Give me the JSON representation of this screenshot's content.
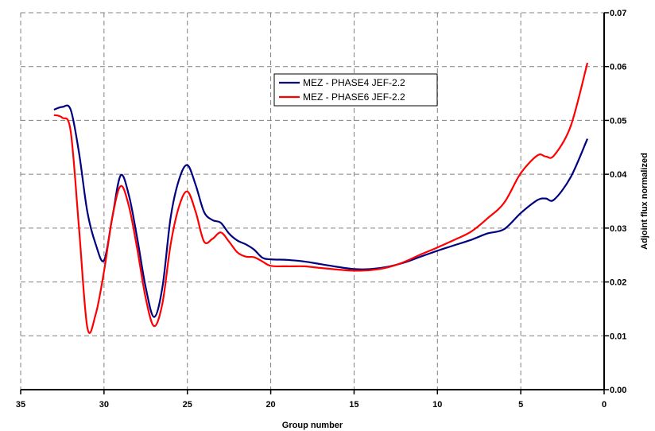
{
  "chart_data": {
    "type": "line",
    "title": "",
    "xlabel": "Group number",
    "ylabel": "Adjoint flux normalized",
    "xlim": [
      35,
      0
    ],
    "ylim": [
      0,
      0.07
    ],
    "x_ticks": [
      "35",
      "30",
      "25",
      "20",
      "15",
      "10",
      "5",
      "0"
    ],
    "y_ticks": [
      "0.00",
      "0.01",
      "0.02",
      "0.03",
      "0.04",
      "0.05",
      "0.06",
      "0.07"
    ],
    "grid": true,
    "legend_position": "top-center",
    "series": [
      {
        "name": "MEZ - PHASE4 JEF-2.2",
        "color": "#000080",
        "x": [
          33,
          32.5,
          32,
          31.5,
          31,
          30.5,
          30,
          29.5,
          29,
          28.5,
          28,
          27.5,
          27,
          26.5,
          26,
          25.5,
          25,
          24.5,
          24,
          23.5,
          23,
          22.5,
          22,
          21.5,
          21,
          20.5,
          20,
          19,
          18,
          17,
          16,
          15,
          14,
          13,
          12,
          11,
          10,
          9,
          8,
          7,
          6,
          5,
          4,
          3.5,
          3,
          2,
          1
        ],
        "y": [
          0.052,
          0.0525,
          0.052,
          0.044,
          0.033,
          0.027,
          0.024,
          0.032,
          0.0398,
          0.036,
          0.028,
          0.019,
          0.0135,
          0.019,
          0.032,
          0.039,
          0.0417,
          0.038,
          0.033,
          0.0315,
          0.031,
          0.029,
          0.0277,
          0.027,
          0.026,
          0.0245,
          0.0242,
          0.0241,
          0.0238,
          0.0233,
          0.0228,
          0.0224,
          0.0224,
          0.0228,
          0.0236,
          0.0247,
          0.0258,
          0.0268,
          0.0278,
          0.029,
          0.0298,
          0.0328,
          0.0352,
          0.0355,
          0.0353,
          0.0395,
          0.0466
        ]
      },
      {
        "name": "MEZ - PHASE6 JEF-2.2",
        "color": "#ff0000",
        "x": [
          33,
          32.5,
          32,
          31.5,
          31,
          30.5,
          30,
          29.5,
          29,
          28.5,
          28,
          27.5,
          27,
          26.5,
          26,
          25.5,
          25,
          24.5,
          24,
          23.5,
          23,
          22.5,
          22,
          21.5,
          21,
          20.5,
          20,
          19,
          18,
          17,
          16,
          15,
          14,
          13,
          12,
          11,
          10,
          9,
          8,
          7,
          6,
          5,
          4,
          3.5,
          3,
          2,
          1
        ],
        "y": [
          0.051,
          0.0505,
          0.048,
          0.03,
          0.0115,
          0.014,
          0.022,
          0.032,
          0.0378,
          0.034,
          0.026,
          0.017,
          0.0118,
          0.016,
          0.027,
          0.034,
          0.0368,
          0.033,
          0.0275,
          0.028,
          0.0292,
          0.0275,
          0.0255,
          0.0247,
          0.0246,
          0.0238,
          0.023,
          0.0229,
          0.0229,
          0.0226,
          0.0223,
          0.0221,
          0.0222,
          0.0227,
          0.0237,
          0.0251,
          0.0264,
          0.0278,
          0.0293,
          0.0318,
          0.0347,
          0.0402,
          0.0435,
          0.0433,
          0.0435,
          0.049,
          0.0607
        ]
      }
    ]
  }
}
